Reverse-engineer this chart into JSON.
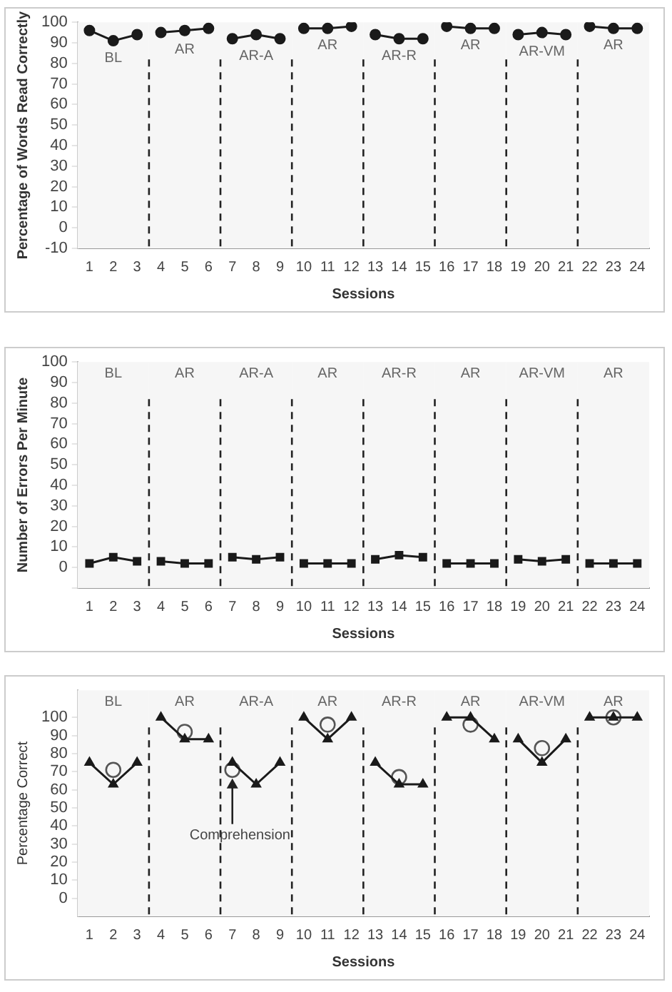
{
  "chart_data": [
    {
      "type": "line",
      "ylabel": "Percentage of Words Read Correctly",
      "xlabel": "Sessions",
      "xlim": [
        0.5,
        24.5
      ],
      "xticks": [
        1,
        2,
        3,
        4,
        5,
        6,
        7,
        8,
        9,
        10,
        11,
        12,
        13,
        14,
        15,
        16,
        17,
        18,
        19,
        20,
        21,
        22,
        23,
        24
      ],
      "ylim": [
        -10,
        100
      ],
      "yticks": [
        -10,
        0,
        10,
        20,
        30,
        40,
        50,
        60,
        70,
        80,
        90,
        100
      ],
      "grid": false,
      "legend": false,
      "marker": "circle",
      "line_style": "solid",
      "series": [
        {
          "color": "#1a1a1a",
          "x": [
            1,
            2,
            3
          ],
          "values": [
            96,
            91,
            94
          ]
        },
        {
          "color": "#1a1a1a",
          "x": [
            4,
            5,
            6
          ],
          "values": [
            95,
            96,
            97
          ]
        },
        {
          "color": "#1a1a1a",
          "x": [
            7,
            8,
            9
          ],
          "values": [
            92,
            94,
            92
          ]
        },
        {
          "color": "#1a1a1a",
          "x": [
            10,
            11,
            12
          ],
          "values": [
            97,
            97,
            98
          ]
        },
        {
          "color": "#1a1a1a",
          "x": [
            13,
            14,
            15
          ],
          "values": [
            94,
            92,
            92
          ]
        },
        {
          "color": "#1a1a1a",
          "x": [
            16,
            17,
            18
          ],
          "values": [
            98,
            97,
            97
          ]
        },
        {
          "color": "#1a1a1a",
          "x": [
            19,
            20,
            21
          ],
          "values": [
            94,
            95,
            94
          ]
        },
        {
          "color": "#1a1a1a",
          "x": [
            22,
            23,
            24
          ],
          "values": [
            98,
            97,
            97
          ]
        }
      ],
      "ref_lines": [
        {
          "axis": "x",
          "value": 3.5,
          "line_style": "dashed"
        },
        {
          "axis": "x",
          "value": 6.5,
          "line_style": "dashed"
        },
        {
          "axis": "x",
          "value": 9.5,
          "line_style": "dashed"
        },
        {
          "axis": "x",
          "value": 12.5,
          "line_style": "dashed"
        },
        {
          "axis": "x",
          "value": 15.5,
          "line_style": "dashed"
        },
        {
          "axis": "x",
          "value": 18.5,
          "line_style": "dashed"
        },
        {
          "axis": "x",
          "value": 21.5,
          "line_style": "dashed"
        }
      ],
      "bands": [
        {
          "axis": "x",
          "from": 0.5,
          "to": 3.5,
          "label": "BL",
          "color": "#f6f6f6"
        },
        {
          "axis": "x",
          "from": 3.5,
          "to": 6.5,
          "label": "AR",
          "color": "#f6f6f6"
        },
        {
          "axis": "x",
          "from": 6.5,
          "to": 9.5,
          "label": "AR-A",
          "color": "#f6f6f6"
        },
        {
          "axis": "x",
          "from": 9.5,
          "to": 12.5,
          "label": "AR",
          "color": "#f6f6f6"
        },
        {
          "axis": "x",
          "from": 12.5,
          "to": 15.5,
          "label": "AR-R",
          "color": "#f6f6f6"
        },
        {
          "axis": "x",
          "from": 15.5,
          "to": 18.5,
          "label": "AR",
          "color": "#f6f6f6"
        },
        {
          "axis": "x",
          "from": 18.5,
          "to": 21.5,
          "label": "AR-VM",
          "color": "#f6f6f6"
        },
        {
          "axis": "x",
          "from": 21.5,
          "to": 24.5,
          "label": "AR",
          "color": "#f6f6f6"
        }
      ]
    },
    {
      "type": "line",
      "ylabel": "Number of Errors Per Minute",
      "xlabel": "Sessions",
      "xlim": [
        0.5,
        24.5
      ],
      "xticks": [
        1,
        2,
        3,
        4,
        5,
        6,
        7,
        8,
        9,
        10,
        11,
        12,
        13,
        14,
        15,
        16,
        17,
        18,
        19,
        20,
        21,
        22,
        23,
        24
      ],
      "ylim": [
        -10,
        100
      ],
      "yticks": [
        {
          "value": -10,
          "label": null
        },
        0,
        10,
        20,
        30,
        40,
        50,
        60,
        70,
        80,
        90,
        100
      ],
      "grid": false,
      "legend": false,
      "marker": "square",
      "line_style": "solid",
      "series": [
        {
          "color": "#1a1a1a",
          "x": [
            1,
            2,
            3
          ],
          "values": [
            2,
            5,
            3
          ]
        },
        {
          "color": "#1a1a1a",
          "x": [
            4,
            5,
            6
          ],
          "values": [
            3,
            2,
            2
          ]
        },
        {
          "color": "#1a1a1a",
          "x": [
            7,
            8,
            9
          ],
          "values": [
            5,
            4,
            5
          ]
        },
        {
          "color": "#1a1a1a",
          "x": [
            10,
            11,
            12
          ],
          "values": [
            2,
            2,
            2
          ]
        },
        {
          "color": "#1a1a1a",
          "x": [
            13,
            14,
            15
          ],
          "values": [
            4,
            6,
            5
          ]
        },
        {
          "color": "#1a1a1a",
          "x": [
            16,
            17,
            18
          ],
          "values": [
            2,
            2,
            2
          ]
        },
        {
          "color": "#1a1a1a",
          "x": [
            19,
            20,
            21
          ],
          "values": [
            4,
            3,
            4
          ]
        },
        {
          "color": "#1a1a1a",
          "x": [
            22,
            23,
            24
          ],
          "values": [
            2,
            2,
            2
          ]
        }
      ],
      "ref_lines": [
        {
          "axis": "x",
          "value": 3.5,
          "line_style": "dashed"
        },
        {
          "axis": "x",
          "value": 6.5,
          "line_style": "dashed"
        },
        {
          "axis": "x",
          "value": 9.5,
          "line_style": "dashed"
        },
        {
          "axis": "x",
          "value": 12.5,
          "line_style": "dashed"
        },
        {
          "axis": "x",
          "value": 15.5,
          "line_style": "dashed"
        },
        {
          "axis": "x",
          "value": 18.5,
          "line_style": "dashed"
        },
        {
          "axis": "x",
          "value": 21.5,
          "line_style": "dashed"
        }
      ],
      "bands": [
        {
          "axis": "x",
          "from": 0.5,
          "to": 3.5,
          "label": "BL",
          "color": "#f6f6f6"
        },
        {
          "axis": "x",
          "from": 3.5,
          "to": 6.5,
          "label": "AR",
          "color": "#f6f6f6"
        },
        {
          "axis": "x",
          "from": 6.5,
          "to": 9.5,
          "label": "AR-A",
          "color": "#f6f6f6"
        },
        {
          "axis": "x",
          "from": 9.5,
          "to": 12.5,
          "label": "AR",
          "color": "#f6f6f6"
        },
        {
          "axis": "x",
          "from": 12.5,
          "to": 15.5,
          "label": "AR-R",
          "color": "#f6f6f6"
        },
        {
          "axis": "x",
          "from": 15.5,
          "to": 18.5,
          "label": "AR",
          "color": "#f6f6f6"
        },
        {
          "axis": "x",
          "from": 18.5,
          "to": 21.5,
          "label": "AR-VM",
          "color": "#f6f6f6"
        },
        {
          "axis": "x",
          "from": 21.5,
          "to": 24.5,
          "label": "AR",
          "color": "#f6f6f6"
        }
      ]
    },
    {
      "type": "line",
      "ylabel": "Percentage Correct",
      "xlabel": "Sessions",
      "xlim": [
        0.5,
        24.5
      ],
      "xticks": [
        1,
        2,
        3,
        4,
        5,
        6,
        7,
        8,
        9,
        10,
        11,
        12,
        13,
        14,
        15,
        16,
        17,
        18,
        19,
        20,
        21,
        22,
        23,
        24
      ],
      "ylim": [
        -10,
        115
      ],
      "yticks": [
        0,
        10,
        20,
        30,
        40,
        50,
        60,
        70,
        80,
        90,
        100
      ],
      "grid": false,
      "legend": false,
      "marker": "triangle",
      "line_style": "solid",
      "series": [
        {
          "color": "#1a1a1a",
          "x": [
            1,
            2,
            3
          ],
          "values": [
            75,
            63,
            75
          ]
        },
        {
          "color": "#1a1a1a",
          "x": [
            4,
            5,
            6
          ],
          "values": [
            100,
            88,
            88
          ]
        },
        {
          "color": "#1a1a1a",
          "x": [
            7,
            8,
            9
          ],
          "values": [
            75,
            63,
            75
          ]
        },
        {
          "color": "#1a1a1a",
          "x": [
            10,
            11,
            12
          ],
          "values": [
            100,
            88,
            100
          ]
        },
        {
          "color": "#1a1a1a",
          "x": [
            13,
            14,
            15
          ],
          "values": [
            75,
            63,
            63
          ]
        },
        {
          "color": "#1a1a1a",
          "x": [
            16,
            17,
            18
          ],
          "values": [
            100,
            100,
            88
          ]
        },
        {
          "color": "#1a1a1a",
          "x": [
            19,
            20,
            21
          ],
          "values": [
            88,
            75,
            88
          ]
        },
        {
          "color": "#1a1a1a",
          "x": [
            22,
            23,
            24
          ],
          "values": [
            100,
            100,
            100
          ]
        },
        {
          "type": "scatter",
          "marker": "circle",
          "color": "#555555",
          "x": [
            2,
            5,
            7,
            11,
            14,
            17,
            20,
            23
          ],
          "values": [
            71,
            92,
            71,
            96,
            67,
            96,
            83,
            100
          ]
        }
      ],
      "ref_lines": [
        {
          "axis": "x",
          "value": 3.5,
          "line_style": "dashed"
        },
        {
          "axis": "x",
          "value": 6.5,
          "line_style": "dashed"
        },
        {
          "axis": "x",
          "value": 9.5,
          "line_style": "dashed"
        },
        {
          "axis": "x",
          "value": 12.5,
          "line_style": "dashed"
        },
        {
          "axis": "x",
          "value": 15.5,
          "line_style": "dashed"
        },
        {
          "axis": "x",
          "value": 18.5,
          "line_style": "dashed"
        },
        {
          "axis": "x",
          "value": 21.5,
          "line_style": "dashed"
        }
      ],
      "bands": [
        {
          "axis": "x",
          "from": 0.5,
          "to": 3.5,
          "label": "BL",
          "color": "#f6f6f6"
        },
        {
          "axis": "x",
          "from": 3.5,
          "to": 6.5,
          "label": "AR",
          "color": "#f6f6f6"
        },
        {
          "axis": "x",
          "from": 6.5,
          "to": 9.5,
          "label": "AR-A",
          "color": "#f6f6f6"
        },
        {
          "axis": "x",
          "from": 9.5,
          "to": 12.5,
          "label": "AR",
          "color": "#f6f6f6"
        },
        {
          "axis": "x",
          "from": 12.5,
          "to": 15.5,
          "label": "AR-R",
          "color": "#f6f6f6"
        },
        {
          "axis": "x",
          "from": 15.5,
          "to": 18.5,
          "label": "AR",
          "color": "#f6f6f6"
        },
        {
          "axis": "x",
          "from": 18.5,
          "to": 21.5,
          "label": "AR-VM",
          "color": "#f6f6f6"
        },
        {
          "axis": "x",
          "from": 21.5,
          "to": 24.5,
          "label": "AR",
          "color": "#f6f6f6"
        }
      ],
      "annotations": [
        {
          "text": "Comprehension",
          "x": 7,
          "y": 71
        }
      ]
    }
  ]
}
